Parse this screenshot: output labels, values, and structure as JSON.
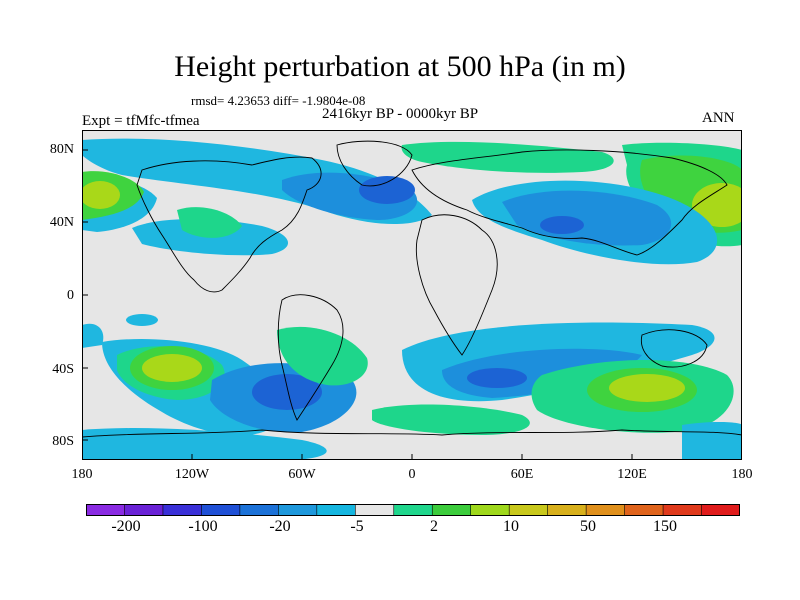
{
  "title": "Height perturbation at 500 hPa (in m)",
  "stats": "rmsd= 4.23653 diff= -1.9804e-08",
  "period": "2416kyr BP - 0000kyr BP",
  "experiment": "Expt = tfMfc-tfmea",
  "season": "ANN",
  "lat_labels": [
    "80N",
    "40N",
    "0",
    "40S",
    "80S"
  ],
  "lon_labels": [
    "180",
    "120W",
    "60W",
    "0",
    "60E",
    "120E",
    "180"
  ],
  "colorbar": {
    "labels": [
      "-200",
      "-100",
      "-20",
      "-5",
      "2",
      "10",
      "50",
      "150"
    ],
    "colors": [
      "#8a2be2",
      "#6a22d6",
      "#3a30d8",
      "#1f50d6",
      "#1c72d8",
      "#1e98dc",
      "#16b6e0",
      "#e6e6e6",
      "#1fd68c",
      "#3ccc3c",
      "#9fd81c",
      "#c8c81c",
      "#d8b01c",
      "#e0901c",
      "#e0641c",
      "#e03a1c",
      "#e01c1c"
    ]
  },
  "field_colors": {
    "neutral": "#e6e6e6",
    "neg_light": "#1fb7e0",
    "neg_mid": "#1d8fdc",
    "neg_strong": "#1c63d4",
    "pos_light": "#1ed68b",
    "pos_mid": "#3fd33f",
    "pos_strong": "#a9d819"
  }
}
